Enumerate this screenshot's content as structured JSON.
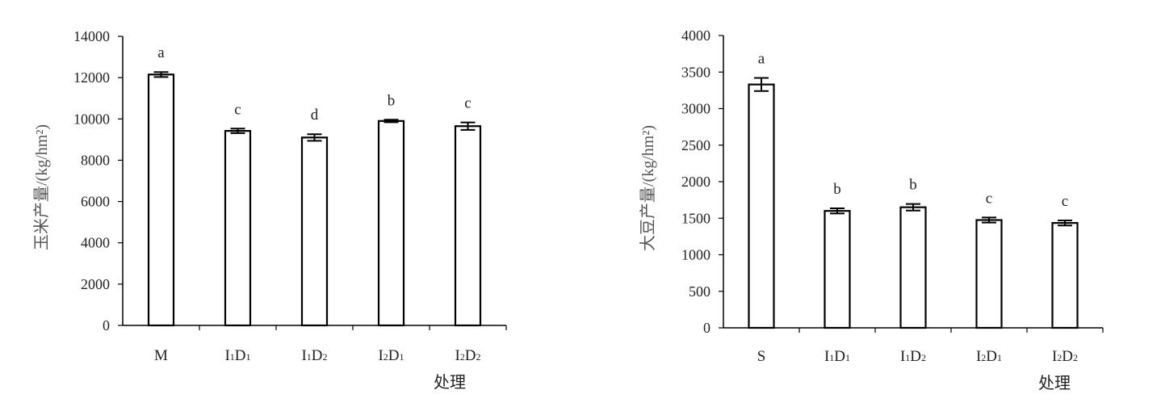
{
  "chart_data": [
    {
      "type": "bar",
      "ylabel": "玉米产量/(kg/hm²)",
      "xlabel": "处理",
      "ylim": [
        0,
        14000
      ],
      "yticks": [
        "0",
        "2000",
        "4000",
        "6000",
        "8000",
        "10000",
        "12000",
        "14000"
      ],
      "categories": [
        {
          "main": "M",
          "parts": [
            {
              "t": "M",
              "sub": false
            }
          ]
        },
        {
          "main": "I1D1",
          "parts": [
            {
              "t": "I",
              "sub": false
            },
            {
              "t": "1",
              "sub": true
            },
            {
              "t": "D",
              "sub": false
            },
            {
              "t": "1",
              "sub": true
            }
          ]
        },
        {
          "main": "I1D2",
          "parts": [
            {
              "t": "I",
              "sub": false
            },
            {
              "t": "1",
              "sub": true
            },
            {
              "t": "D",
              "sub": false
            },
            {
              "t": "2",
              "sub": true
            }
          ]
        },
        {
          "main": "I2D1",
          "parts": [
            {
              "t": "I",
              "sub": false
            },
            {
              "t": "2",
              "sub": true
            },
            {
              "t": "D",
              "sub": false
            },
            {
              "t": "1",
              "sub": true
            }
          ]
        },
        {
          "main": "I2D2",
          "parts": [
            {
              "t": "I",
              "sub": false
            },
            {
              "t": "2",
              "sub": true
            },
            {
              "t": "D",
              "sub": false
            },
            {
              "t": "2",
              "sub": true
            }
          ]
        }
      ],
      "values": [
        12150,
        9420,
        9100,
        9900,
        9650
      ],
      "errors": [
        120,
        110,
        160,
        60,
        180
      ],
      "significance": [
        "a",
        "c",
        "d",
        "b",
        "c"
      ]
    },
    {
      "type": "bar",
      "ylabel": "大豆产量/(kg/hm²)",
      "xlabel": "处理",
      "ylim": [
        0,
        4000
      ],
      "yticks": [
        "0",
        "500",
        "1000",
        "1500",
        "2000",
        "2500",
        "3000",
        "3500",
        "4000"
      ],
      "categories": [
        {
          "main": "S",
          "parts": [
            {
              "t": "S",
              "sub": false
            }
          ]
        },
        {
          "main": "I1D1",
          "parts": [
            {
              "t": "I",
              "sub": false
            },
            {
              "t": "1",
              "sub": true
            },
            {
              "t": "D",
              "sub": false
            },
            {
              "t": "1",
              "sub": true
            }
          ]
        },
        {
          "main": "I1D2",
          "parts": [
            {
              "t": "I",
              "sub": false
            },
            {
              "t": "1",
              "sub": true
            },
            {
              "t": "D",
              "sub": false
            },
            {
              "t": "2",
              "sub": true
            }
          ]
        },
        {
          "main": "I2D1",
          "parts": [
            {
              "t": "I",
              "sub": false
            },
            {
              "t": "2",
              "sub": true
            },
            {
              "t": "D",
              "sub": false
            },
            {
              "t": "1",
              "sub": true
            }
          ]
        },
        {
          "main": "I2D2",
          "parts": [
            {
              "t": "I",
              "sub": false
            },
            {
              "t": "2",
              "sub": true
            },
            {
              "t": "D",
              "sub": false
            },
            {
              "t": "2",
              "sub": true
            }
          ]
        }
      ],
      "values": [
        3330,
        1600,
        1650,
        1475,
        1435
      ],
      "errors": [
        90,
        35,
        45,
        35,
        35
      ],
      "significance": [
        "a",
        "b",
        "b",
        "c",
        "c"
      ]
    }
  ]
}
